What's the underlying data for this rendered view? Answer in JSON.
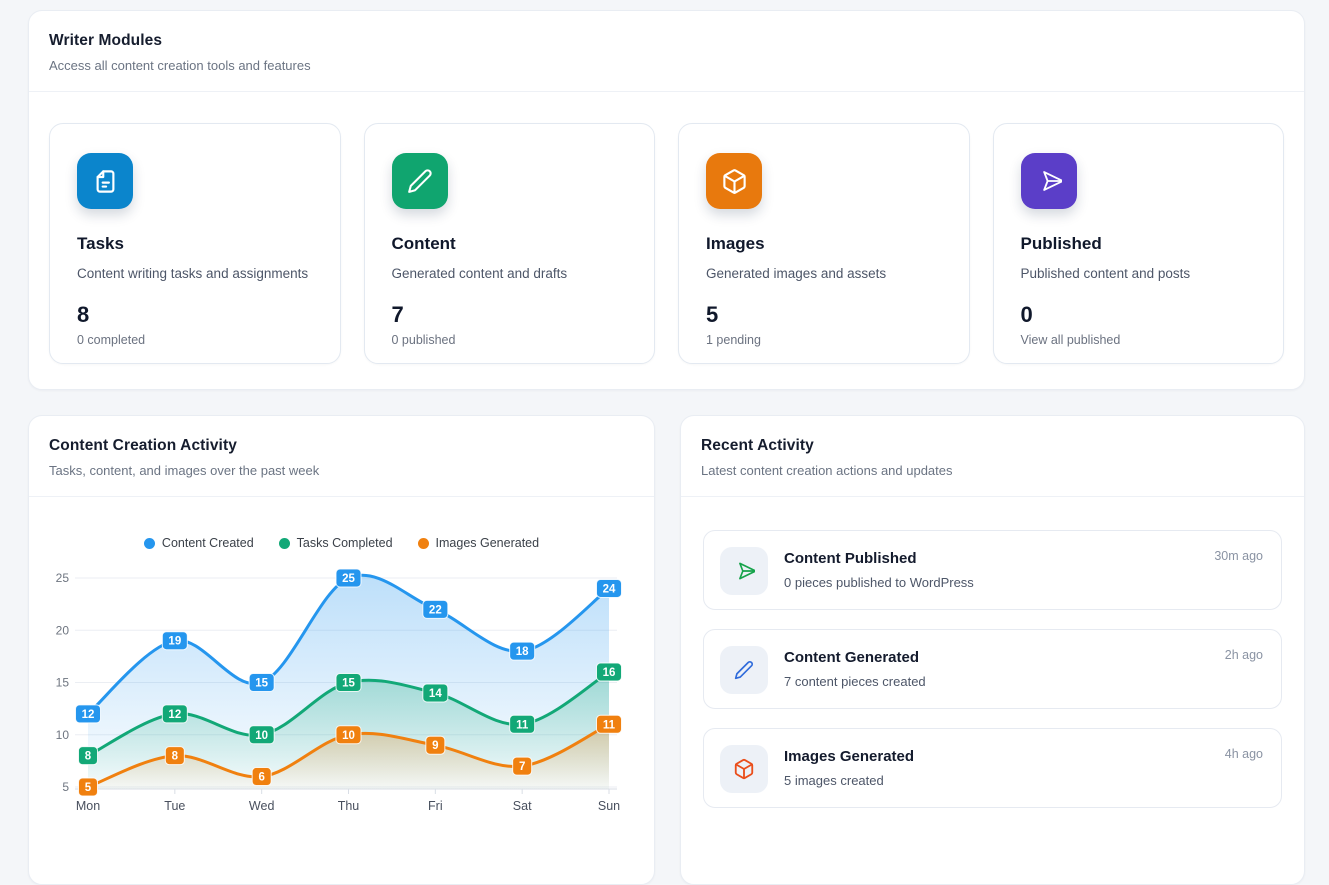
{
  "writer_modules": {
    "title": "Writer Modules",
    "subtitle": "Access all content creation tools and features",
    "cards": [
      {
        "title": "Tasks",
        "description": "Content writing tasks and assignments",
        "value": "8",
        "sub_label": "0 completed",
        "icon": "file-icon",
        "color": "#0b85cc"
      },
      {
        "title": "Content",
        "description": "Generated content and drafts",
        "value": "7",
        "sub_label": "0 published",
        "icon": "pencil-icon",
        "color": "#10a56f"
      },
      {
        "title": "Images",
        "description": "Generated images and assets",
        "value": "5",
        "sub_label": "1 pending",
        "icon": "cube-icon",
        "color": "#e8790d"
      },
      {
        "title": "Published",
        "description": "Published content and posts",
        "value": "0",
        "sub_label": "View all published",
        "icon": "send-icon",
        "color": "#5b3ec8"
      }
    ]
  },
  "activity_chart": {
    "title": "Content Creation Activity",
    "subtitle": "Tasks, content, and images over the past week"
  },
  "chart_data": {
    "type": "line",
    "title": "Content Creation Activity",
    "x": [
      "Mon",
      "Tue",
      "Wed",
      "Thu",
      "Fri",
      "Sat",
      "Sun"
    ],
    "series": [
      {
        "name": "Content Created",
        "color": "#2596ee",
        "values": [
          12,
          19,
          15,
          25,
          22,
          18,
          24
        ]
      },
      {
        "name": "Tasks Completed",
        "color": "#12a877",
        "values": [
          8,
          12,
          10,
          15,
          14,
          11,
          16
        ]
      },
      {
        "name": "Images Generated",
        "color": "#f0800f",
        "values": [
          5,
          8,
          6,
          10,
          9,
          7,
          11
        ]
      }
    ],
    "y_ticks": [
      5,
      10,
      15,
      20,
      25
    ],
    "ylim": [
      5,
      25
    ],
    "smooth": true,
    "area": true,
    "point_labels": true,
    "grid": true,
    "legend_position": "top"
  },
  "recent_activity": {
    "title": "Recent Activity",
    "subtitle": "Latest content creation actions and updates",
    "items": [
      {
        "title": "Content Published",
        "description": "0 pieces published to WordPress",
        "time": "30m ago",
        "icon": "send-icon",
        "icon_color": "#16a34a"
      },
      {
        "title": "Content Generated",
        "description": "7 content pieces created",
        "time": "2h ago",
        "icon": "pencil-icon",
        "icon_color": "#2f6bdb"
      },
      {
        "title": "Images Generated",
        "description": "5 images created",
        "time": "4h ago",
        "icon": "cube-icon",
        "icon_color": "#ea4e1b"
      }
    ]
  }
}
